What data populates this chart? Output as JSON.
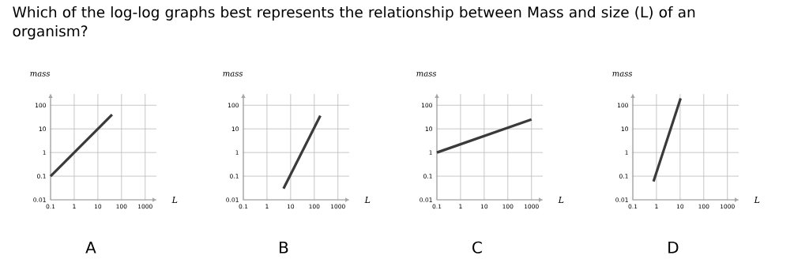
{
  "chart_data": [
    {
      "type": "line",
      "title": "Which of the log-log graphs best represents the relationship between Mass and size (L) of an organism?",
      "xlabel": "L",
      "ylabel": "mass",
      "annotations": [
        "A"
      ],
      "log": "xy",
      "grid": true,
      "marker": "none",
      "xlim": [
        0.1,
        3000
      ],
      "ylim": [
        0.01,
        300
      ],
      "xticks": [
        0.1,
        1,
        10,
        100,
        1000
      ],
      "yticks": [
        0.01,
        0.1,
        1,
        10,
        100
      ],
      "series": [
        {
          "color": "#3a3a3a",
          "x": [
            0.1,
            40
          ],
          "values": [
            0.1,
            40
          ]
        }
      ]
    },
    {
      "type": "line",
      "xlabel": "L",
      "ylabel": "mass",
      "annotations": [
        "B"
      ],
      "log": "xy",
      "grid": true,
      "marker": "none",
      "xlim": [
        0.1,
        3000
      ],
      "ylim": [
        0.01,
        300
      ],
      "xticks": [
        0.1,
        1,
        10,
        100,
        1000
      ],
      "yticks": [
        0.01,
        0.1,
        1,
        10,
        100
      ],
      "series": [
        {
          "color": "#3a3a3a",
          "x": [
            5,
            180
          ],
          "values": [
            0.03,
            36
          ]
        }
      ]
    },
    {
      "type": "line",
      "xlabel": "L",
      "ylabel": "mass",
      "annotations": [
        "C"
      ],
      "log": "xy",
      "grid": true,
      "marker": "none",
      "xlim": [
        0.1,
        3000
      ],
      "ylim": [
        0.01,
        300
      ],
      "xticks": [
        0.1,
        1,
        10,
        100,
        1000
      ],
      "yticks": [
        0.01,
        0.1,
        1,
        10,
        100
      ],
      "series": [
        {
          "color": "#3a3a3a",
          "x": [
            0.1,
            1000
          ],
          "values": [
            1,
            25
          ]
        }
      ]
    },
    {
      "type": "line",
      "xlabel": "L",
      "ylabel": "mass",
      "annotations": [
        "D"
      ],
      "log": "xy",
      "grid": true,
      "marker": "none",
      "xlim": [
        0.1,
        3000
      ],
      "ylim": [
        0.01,
        300
      ],
      "xticks": [
        0.1,
        1,
        10,
        100,
        1000
      ],
      "yticks": [
        0.01,
        0.1,
        1,
        10,
        100
      ],
      "series": [
        {
          "color": "#3a3a3a",
          "x": [
            0.75,
            10.5
          ],
          "values": [
            0.06,
            195
          ]
        }
      ]
    }
  ]
}
